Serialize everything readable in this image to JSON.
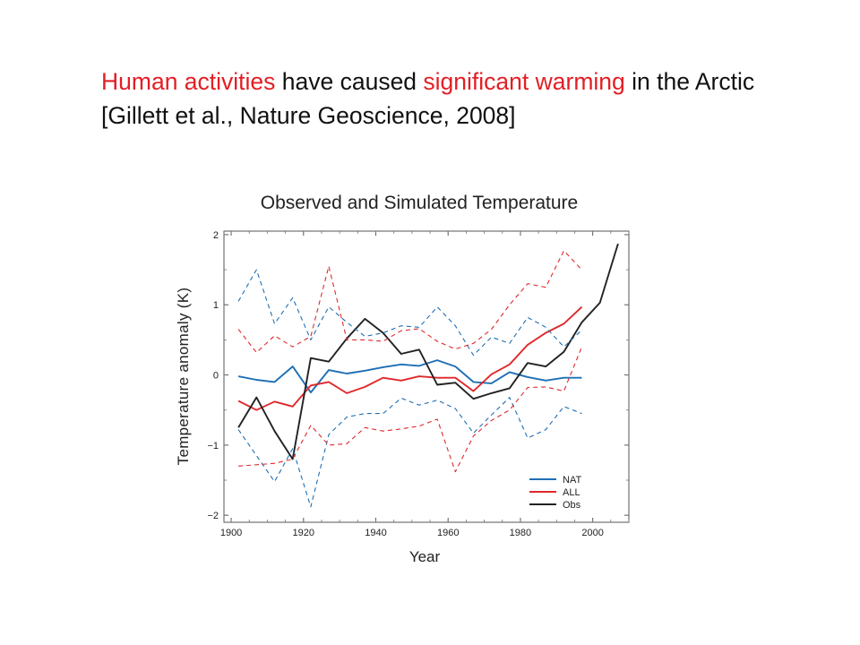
{
  "headline": {
    "part1": "Human activities",
    "part2": " have caused ",
    "part3": "significant warming",
    "part4": " in the Arctic [Gillett et al., Nature Geoscience, 2008]"
  },
  "colors": {
    "highlight": "#e31e24",
    "nat": "#1f6fb5",
    "all": "#e0282c",
    "obs": "#222222"
  },
  "chart_data": {
    "type": "line",
    "title": "Observed and Simulated Temperature",
    "xlabel": "Year",
    "ylabel": "Temperature anomaly (K)",
    "xlim": [
      1898,
      2010
    ],
    "ylim": [
      -2.1,
      2.05
    ],
    "xticks": [
      1900,
      1920,
      1940,
      1960,
      1980,
      2000
    ],
    "yticks": [
      -2,
      -1,
      0,
      1,
      2
    ],
    "ytick_labels": [
      "−2",
      "−1",
      "0",
      "1",
      "2"
    ],
    "grid": false,
    "legend": {
      "placement": "bottom-right",
      "entries": [
        "NAT",
        "ALL",
        "Obs"
      ]
    },
    "series": [
      {
        "name": "NAT",
        "color": "#1f6fb5",
        "style": "solid",
        "x": [
          1902,
          1907,
          1912,
          1917,
          1922,
          1927,
          1932,
          1937,
          1942,
          1947,
          1952,
          1957,
          1962,
          1967,
          1972,
          1977,
          1982,
          1987,
          1992,
          1997
        ],
        "values": [
          -0.02,
          -0.07,
          -0.1,
          0.12,
          -0.25,
          0.07,
          0.02,
          0.06,
          0.11,
          0.15,
          0.13,
          0.21,
          0.12,
          -0.1,
          -0.12,
          0.04,
          -0.03,
          -0.08,
          -0.04,
          -0.04
        ]
      },
      {
        "name": "ALL",
        "color": "#e0282c",
        "style": "solid",
        "x": [
          1902,
          1907,
          1912,
          1917,
          1922,
          1927,
          1932,
          1937,
          1942,
          1947,
          1952,
          1957,
          1962,
          1967,
          1972,
          1977,
          1982,
          1987,
          1992,
          1997
        ],
        "values": [
          -0.37,
          -0.5,
          -0.38,
          -0.45,
          -0.15,
          -0.1,
          -0.26,
          -0.17,
          -0.04,
          -0.08,
          -0.02,
          -0.04,
          -0.04,
          -0.23,
          0.01,
          0.15,
          0.43,
          0.6,
          0.73,
          0.97
        ]
      },
      {
        "name": "Obs",
        "color": "#222222",
        "style": "solid",
        "x": [
          1902,
          1907,
          1912,
          1917,
          1922,
          1927,
          1932,
          1937,
          1942,
          1947,
          1952,
          1957,
          1962,
          1967,
          1972,
          1977,
          1982,
          1987,
          1992,
          1997,
          2002,
          2007
        ],
        "values": [
          -0.75,
          -0.32,
          -0.8,
          -1.2,
          0.24,
          0.19,
          0.52,
          0.8,
          0.6,
          0.3,
          0.36,
          -0.14,
          -0.11,
          -0.34,
          -0.26,
          -0.19,
          0.17,
          0.12,
          0.33,
          0.75,
          1.03,
          1.87
        ]
      },
      {
        "name": "",
        "color": "#1f6fb5",
        "style": "dashed",
        "x": [
          1902,
          1907,
          1912,
          1917,
          1922,
          1927,
          1932,
          1937,
          1942,
          1947,
          1952,
          1957,
          1962,
          1967,
          1972,
          1977,
          1982,
          1987,
          1992,
          1997
        ],
        "values": [
          1.05,
          1.5,
          0.73,
          1.1,
          0.5,
          0.97,
          0.75,
          0.55,
          0.6,
          0.7,
          0.68,
          0.97,
          0.7,
          0.28,
          0.54,
          0.45,
          0.82,
          0.68,
          0.4,
          0.64
        ]
      },
      {
        "name": "",
        "color": "#1f6fb5",
        "style": "dashed",
        "x": [
          1902,
          1907,
          1912,
          1917,
          1922,
          1927,
          1932,
          1937,
          1942,
          1947,
          1952,
          1957,
          1962,
          1967,
          1972,
          1977,
          1982,
          1987,
          1992,
          1997
        ],
        "values": [
          -0.78,
          -1.15,
          -1.52,
          -1.05,
          -1.88,
          -0.85,
          -0.6,
          -0.55,
          -0.55,
          -0.33,
          -0.43,
          -0.36,
          -0.48,
          -0.83,
          -0.57,
          -0.32,
          -0.9,
          -0.78,
          -0.45,
          -0.55
        ]
      },
      {
        "name": "",
        "color": "#e0282c",
        "style": "dashed",
        "x": [
          1902,
          1907,
          1912,
          1917,
          1922,
          1927,
          1932,
          1937,
          1942,
          1947,
          1952,
          1957,
          1962,
          1967,
          1972,
          1977,
          1982,
          1987,
          1992,
          1997
        ],
        "values": [
          0.65,
          0.32,
          0.56,
          0.4,
          0.55,
          1.55,
          0.5,
          0.5,
          0.48,
          0.63,
          0.66,
          0.48,
          0.37,
          0.45,
          0.65,
          1.0,
          1.3,
          1.25,
          1.77,
          1.5
        ]
      },
      {
        "name": "",
        "color": "#e0282c",
        "style": "dashed",
        "x": [
          1902,
          1907,
          1912,
          1917,
          1922,
          1927,
          1932,
          1937,
          1942,
          1947,
          1952,
          1957,
          1962,
          1967,
          1972,
          1977,
          1982,
          1987,
          1992,
          1997
        ],
        "values": [
          -1.3,
          -1.28,
          -1.26,
          -1.2,
          -0.72,
          -1.0,
          -0.98,
          -0.75,
          -0.8,
          -0.77,
          -0.73,
          -0.63,
          -1.38,
          -0.87,
          -0.65,
          -0.5,
          -0.18,
          -0.17,
          -0.23,
          0.4
        ]
      }
    ]
  }
}
